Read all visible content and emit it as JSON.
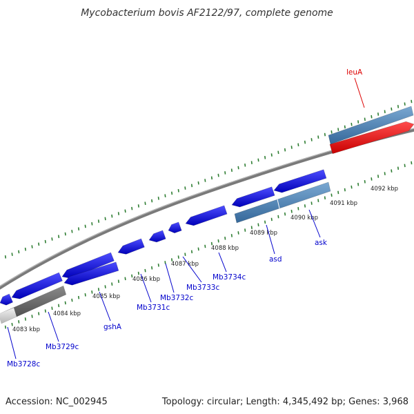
{
  "title": "Mycobacterium bovis AF2122/97, complete genome",
  "footer": {
    "accession": "Accession: NC_002945",
    "summary": "Topology: circular; Length: 4,345,492 bp; Genes: 3,968"
  },
  "colors": {
    "gene": "#0000ee",
    "gene_highlight": "#ee0000",
    "feature_steelblue": "#4a82b4",
    "label_blue": "#0000cc",
    "label_red": "#dd0000",
    "tick_green": "#2e7d32",
    "backbone": "#7a7a7a"
  },
  "tick_labels": [
    "4083 kbp",
    "4084 kbp",
    "4085 kbp",
    "4086 kbp",
    "4087 kbp",
    "4088 kbp",
    "4089 kbp",
    "4090 kbp",
    "4091 kbp",
    "4092 kbp"
  ],
  "gene_labels": [
    {
      "name": "Mb3728c",
      "color": "blue"
    },
    {
      "name": "Mb3729c",
      "color": "blue"
    },
    {
      "name": "gshA",
      "color": "blue"
    },
    {
      "name": "Mb3731c",
      "color": "blue"
    },
    {
      "name": "Mb3732c",
      "color": "blue"
    },
    {
      "name": "Mb3733c",
      "color": "blue"
    },
    {
      "name": "Mb3734c",
      "color": "blue"
    },
    {
      "name": "asd",
      "color": "blue"
    },
    {
      "name": "ask",
      "color": "blue"
    },
    {
      "name": "leuA",
      "color": "red"
    }
  ]
}
